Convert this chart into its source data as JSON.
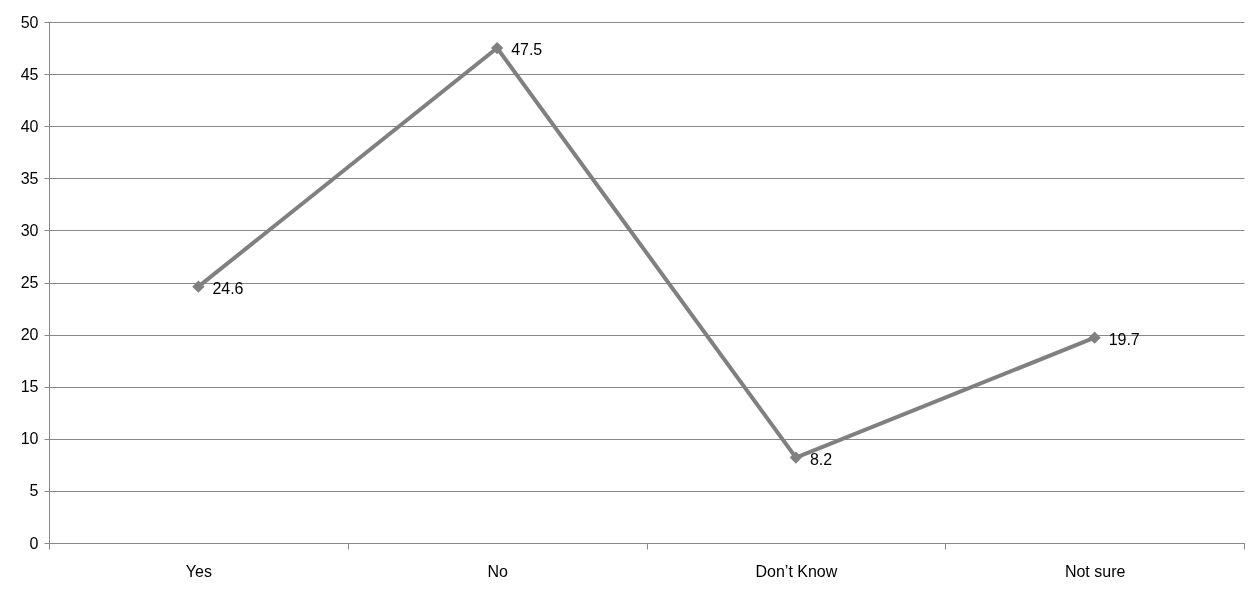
{
  "chart_data": {
    "type": "line",
    "categories": [
      "Yes",
      "No",
      "Don’t Know",
      "Not sure"
    ],
    "series": [
      {
        "color": "#808080",
        "values": [
          24.6,
          47.5,
          8.2,
          19.7
        ]
      }
    ],
    "ylim": [
      0,
      50
    ],
    "yticks": [
      0,
      5,
      10,
      15,
      20,
      25,
      30,
      35,
      40,
      45,
      50
    ],
    "grid": "y",
    "marker": "diamond",
    "line_style": "solid",
    "data_labels": true
  }
}
